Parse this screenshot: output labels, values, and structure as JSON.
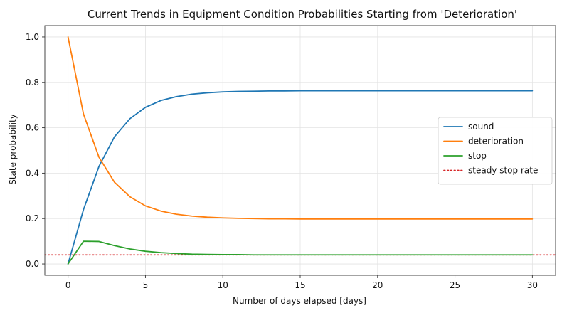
{
  "chart_data": {
    "type": "line",
    "title": "Current Trends in Equipment Condition Probabilities Starting from 'Deterioration'",
    "xlabel": "Number of days elapsed [days]",
    "ylabel": "State probability",
    "xlim": [
      -1.5,
      31.5
    ],
    "ylim": [
      -0.05,
      1.05
    ],
    "xticks": [
      0,
      5,
      10,
      15,
      20,
      25,
      30
    ],
    "xtick_labels": [
      "0",
      "5",
      "10",
      "15",
      "20",
      "25",
      "30"
    ],
    "yticks": [
      0.0,
      0.2,
      0.4,
      0.6,
      0.8,
      1.0
    ],
    "ytick_labels": [
      "0.0",
      "0.2",
      "0.4",
      "0.6",
      "0.8",
      "1.0"
    ],
    "grid": true,
    "legend_position": "center-right",
    "x": [
      0,
      1,
      2,
      3,
      4,
      5,
      6,
      7,
      8,
      9,
      10,
      11,
      12,
      13,
      14,
      15,
      16,
      17,
      18,
      19,
      20,
      21,
      22,
      23,
      24,
      25,
      26,
      27,
      28,
      29,
      30
    ],
    "series": [
      {
        "name": "sound",
        "color": "#1f77b4",
        "style": "solid",
        "values": [
          0.0,
          0.24,
          0.43,
          0.56,
          0.64,
          0.69,
          0.72,
          0.737,
          0.748,
          0.754,
          0.758,
          0.76,
          0.761,
          0.762,
          0.762,
          0.763,
          0.763,
          0.763,
          0.763,
          0.763,
          0.763,
          0.763,
          0.763,
          0.763,
          0.763,
          0.763,
          0.763,
          0.763,
          0.763,
          0.763,
          0.763
        ]
      },
      {
        "name": "deterioration",
        "color": "#ff7f0e",
        "style": "solid",
        "values": [
          1.0,
          0.66,
          0.47,
          0.36,
          0.296,
          0.256,
          0.233,
          0.219,
          0.211,
          0.206,
          0.203,
          0.201,
          0.2,
          0.199,
          0.199,
          0.198,
          0.198,
          0.198,
          0.198,
          0.198,
          0.198,
          0.198,
          0.198,
          0.198,
          0.198,
          0.198,
          0.198,
          0.198,
          0.198,
          0.198,
          0.198
        ]
      },
      {
        "name": "stop",
        "color": "#2ca02c",
        "style": "solid",
        "values": [
          0.0,
          0.1,
          0.099,
          0.081,
          0.066,
          0.056,
          0.05,
          0.046,
          0.043,
          0.042,
          0.041,
          0.041,
          0.04,
          0.04,
          0.04,
          0.04,
          0.04,
          0.04,
          0.04,
          0.04,
          0.04,
          0.04,
          0.04,
          0.04,
          0.04,
          0.04,
          0.04,
          0.04,
          0.04,
          0.04,
          0.04
        ]
      }
    ],
    "hlines": [
      {
        "name": "steady stop rate",
        "y": 0.04,
        "color": "#d62728",
        "style": "dotted"
      }
    ]
  }
}
